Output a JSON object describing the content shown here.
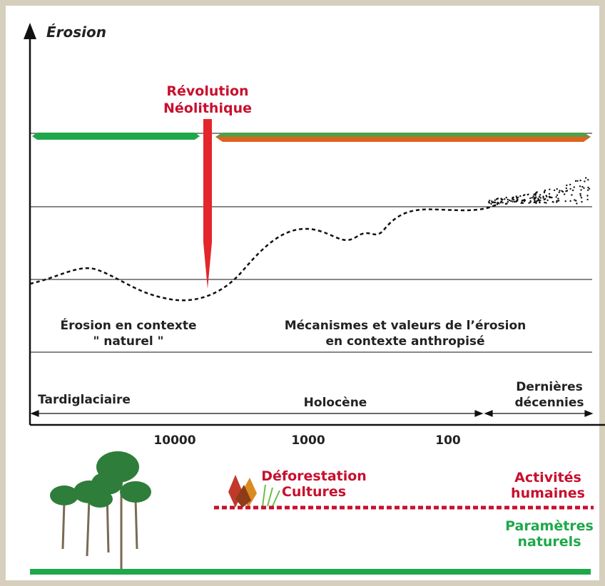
{
  "axis_title": "Érosion",
  "event": {
    "lines": [
      "Révolution",
      "Néolithique"
    ]
  },
  "zones": [
    {
      "lines": [
        "Érosion en contexte",
        "\" naturel \""
      ]
    },
    {
      "lines": [
        "Mécanismes et valeurs de l’érosion",
        "en contexte anthropisé"
      ]
    }
  ],
  "periods": [
    {
      "lines": [
        "Tardiglaciaire"
      ]
    },
    {
      "lines": [
        "Holocène"
      ]
    },
    {
      "lines": [
        "Dernières",
        "décennies"
      ]
    }
  ],
  "x_tick_labels": [
    "10000",
    "1000",
    "100"
  ],
  "human": {
    "activities": [
      "Déforestation",
      "Cultures"
    ],
    "label": [
      "Activités",
      "humaines"
    ]
  },
  "natural": {
    "label": [
      "Paramètres",
      "naturels"
    ]
  }
}
